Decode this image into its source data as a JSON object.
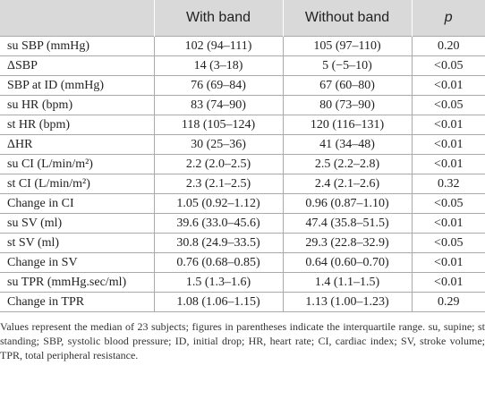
{
  "table": {
    "header": [
      "With band",
      "Without band",
      "p"
    ],
    "rows": [
      [
        "su SBP (mmHg)",
        "102 (94–111)",
        "105 (97–110)",
        "0.20"
      ],
      [
        "ΔSBP",
        "14 (3–18)",
        "5 (−5–10)",
        "<0.05"
      ],
      [
        "SBP at ID (mmHg)",
        "76 (69–84)",
        "67 (60–80)",
        "<0.01"
      ],
      [
        "su HR (bpm)",
        "83 (74–90)",
        "80 (73–90)",
        "<0.05"
      ],
      [
        "st HR (bpm)",
        "118 (105–124)",
        "120 (116–131)",
        "<0.01"
      ],
      [
        "ΔHR",
        "30 (25–36)",
        "41 (34–48)",
        "<0.01"
      ],
      [
        "su CI (L/min/m²)",
        "2.2 (2.0–2.5)",
        "2.5 (2.2–2.8)",
        "<0.01"
      ],
      [
        "st CI (L/min/m²)",
        "2.3 (2.1–2.5)",
        "2.4 (2.1–2.6)",
        "0.32"
      ],
      [
        "Change in CI",
        "1.05 (0.92–1.12)",
        "0.96 (0.87–1.10)",
        "<0.05"
      ],
      [
        "su SV (ml)",
        "39.6 (33.0–45.6)",
        "47.4 (35.8–51.5)",
        "<0.01"
      ],
      [
        "st SV (ml)",
        "30.8 (24.9–33.5)",
        "29.3 (22.8–32.9)",
        "<0.05"
      ],
      [
        "Change in SV",
        "0.76 (0.68–0.85)",
        "0.64 (0.60–0.70)",
        "<0.01"
      ],
      [
        "su TPR (mmHg.sec/ml)",
        "1.5 (1.3–1.6)",
        "1.4 (1.1–1.5)",
        "<0.01"
      ],
      [
        "Change in TPR",
        "1.08 (1.06–1.15)",
        "1.13 (1.00–1.23)",
        "0.29"
      ]
    ]
  },
  "footnote": "Values represent the median of 23 subjects; figures in parentheses indicate the interquartile range. su, supine; st standing; SBP, systolic blood pressure; ID, initial drop; HR, heart rate; CI, cardiac index; SV, stroke volume; TPR, total peripheral resistance."
}
